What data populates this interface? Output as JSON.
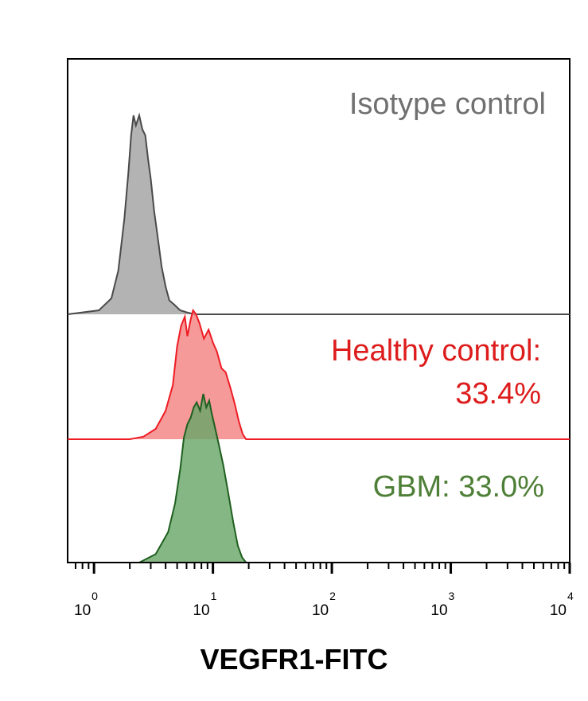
{
  "chart_data": {
    "type": "histogram-overlay",
    "x_scale": "log",
    "xlim": [
      0.6,
      10000
    ],
    "xlabel": "VEGFR1-FITC",
    "ticks": [
      {
        "base": "10",
        "exp": "0",
        "value": 1
      },
      {
        "base": "10",
        "exp": "1",
        "value": 10
      },
      {
        "base": "10",
        "exp": "2",
        "value": 100
      },
      {
        "base": "10",
        "exp": "3",
        "value": 1000
      },
      {
        "base": "10",
        "exp": "4",
        "value": 10000
      }
    ],
    "series": [
      {
        "name": "isotype",
        "label_lines": [
          "Isotype control"
        ],
        "stroke": "#4a4a4a",
        "fill": "#a0a0a0",
        "label_color": "#707070",
        "x": [
          0.6,
          1.1,
          1.4,
          1.6,
          1.8,
          1.95,
          2.05,
          2.15,
          2.25,
          2.4,
          2.55,
          2.7,
          2.85,
          3.0,
          3.2,
          3.45,
          3.7,
          4.0,
          4.3,
          4.7,
          5.3,
          6.0,
          7.0,
          10000
        ],
        "y": [
          0,
          0.02,
          0.08,
          0.22,
          0.48,
          0.72,
          0.9,
          1.0,
          0.95,
          1.0,
          0.93,
          0.9,
          0.78,
          0.68,
          0.52,
          0.38,
          0.24,
          0.14,
          0.07,
          0.05,
          0.02,
          0.01,
          0,
          0
        ]
      },
      {
        "name": "healthy",
        "label_lines": [
          "Healthy control:",
          "33.4%"
        ],
        "stroke": "#ee1c24",
        "fill": "#f27f7f",
        "label_color": "#dd1c1c",
        "x": [
          0.6,
          2.0,
          2.6,
          3.3,
          4.0,
          4.6,
          5.0,
          5.4,
          5.8,
          6.1,
          6.5,
          6.8,
          7.2,
          7.7,
          8.4,
          9.2,
          10.0,
          10.8,
          11.8,
          12.8,
          14.0,
          15.2,
          16.5,
          17.8,
          19.0,
          10000
        ],
        "y": [
          0,
          0,
          0.02,
          0.08,
          0.22,
          0.42,
          0.72,
          0.88,
          0.95,
          0.8,
          0.93,
          1.0,
          0.97,
          0.9,
          0.78,
          0.85,
          0.75,
          0.68,
          0.55,
          0.52,
          0.4,
          0.28,
          0.14,
          0.04,
          0,
          0
        ]
      },
      {
        "name": "gbm",
        "label_lines": [
          "GBM: 33.0%"
        ],
        "stroke": "#1f5f1f",
        "fill": "#67a567",
        "label_color": "#4e7f36",
        "x": [
          0.6,
          2.4,
          3.3,
          4.2,
          4.8,
          5.3,
          5.7,
          6.1,
          6.5,
          6.9,
          7.3,
          7.8,
          8.3,
          8.8,
          9.3,
          9.8,
          10.4,
          11.2,
          12.2,
          13.4,
          14.8,
          16.2,
          17.6,
          19.0,
          10000
        ],
        "y": [
          0,
          0,
          0.05,
          0.18,
          0.35,
          0.55,
          0.74,
          0.82,
          0.86,
          0.92,
          0.95,
          0.9,
          1.0,
          0.92,
          0.96,
          0.88,
          0.8,
          0.7,
          0.58,
          0.42,
          0.24,
          0.1,
          0.03,
          0,
          0
        ]
      }
    ]
  }
}
